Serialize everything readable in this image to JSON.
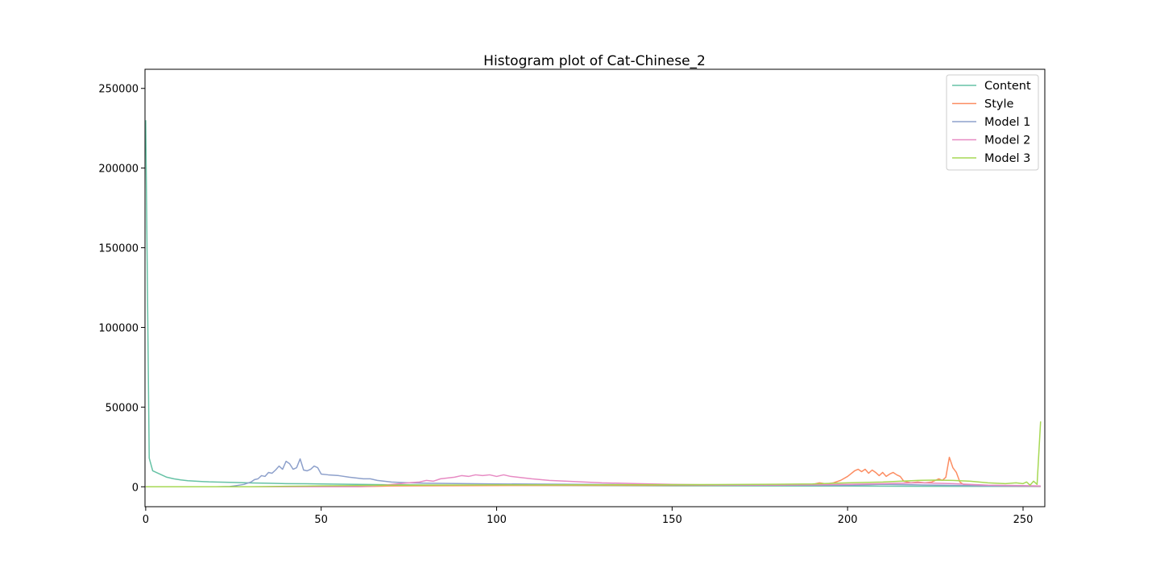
{
  "chart_data": {
    "type": "line",
    "title": "Histogram plot of Cat-Chinese_2",
    "xlabel": "",
    "ylabel": "",
    "xlim": [
      0,
      255
    ],
    "ylim": [
      -12500,
      262000
    ],
    "xticks": [
      0,
      50,
      100,
      150,
      200,
      250
    ],
    "yticks": [
      0,
      50000,
      100000,
      150000,
      200000,
      250000
    ],
    "legend_position": "top-right",
    "grid": false,
    "series": [
      {
        "name": "Content",
        "color": "#66c2a5",
        "points": [
          [
            0,
            230000
          ],
          [
            1,
            18000
          ],
          [
            2,
            10000
          ],
          [
            4,
            8000
          ],
          [
            6,
            6000
          ],
          [
            8,
            5000
          ],
          [
            10,
            4300
          ],
          [
            12,
            3800
          ],
          [
            15,
            3400
          ],
          [
            18,
            3100
          ],
          [
            20,
            3000
          ],
          [
            25,
            2700
          ],
          [
            30,
            2400
          ],
          [
            35,
            2200
          ],
          [
            40,
            2000
          ],
          [
            50,
            1800
          ],
          [
            60,
            1500
          ],
          [
            70,
            1300
          ],
          [
            80,
            1100
          ],
          [
            100,
            900
          ],
          [
            120,
            750
          ],
          [
            150,
            600
          ],
          [
            180,
            500
          ],
          [
            200,
            450
          ],
          [
            220,
            350
          ],
          [
            240,
            250
          ],
          [
            255,
            200
          ]
        ]
      },
      {
        "name": "Style",
        "color": "#fc8d62",
        "points": [
          [
            0,
            0
          ],
          [
            60,
            0
          ],
          [
            70,
            500
          ],
          [
            100,
            800
          ],
          [
            150,
            900
          ],
          [
            185,
            1000
          ],
          [
            190,
            1500
          ],
          [
            192,
            2500
          ],
          [
            194,
            1800
          ],
          [
            196,
            2500
          ],
          [
            198,
            4000
          ],
          [
            200,
            6500
          ],
          [
            202,
            10000
          ],
          [
            203,
            11000
          ],
          [
            204,
            9500
          ],
          [
            205,
            11000
          ],
          [
            206,
            8500
          ],
          [
            207,
            10500
          ],
          [
            208,
            9000
          ],
          [
            209,
            7000
          ],
          [
            210,
            9000
          ],
          [
            211,
            6500
          ],
          [
            212,
            8000
          ],
          [
            213,
            9000
          ],
          [
            214,
            7500
          ],
          [
            215,
            6500
          ],
          [
            216,
            3500
          ],
          [
            217,
            3000
          ],
          [
            218,
            2500
          ],
          [
            220,
            3000
          ],
          [
            222,
            2500
          ],
          [
            224,
            3000
          ],
          [
            226,
            5000
          ],
          [
            227,
            4000
          ],
          [
            228,
            6000
          ],
          [
            229,
            18500
          ],
          [
            230,
            12000
          ],
          [
            231,
            9000
          ],
          [
            232,
            3000
          ],
          [
            233,
            1500
          ],
          [
            235,
            800
          ],
          [
            240,
            500
          ],
          [
            250,
            300
          ],
          [
            255,
            200
          ]
        ]
      },
      {
        "name": "Model 1",
        "color": "#8da0cb",
        "points": [
          [
            0,
            0
          ],
          [
            20,
            0
          ],
          [
            24,
            200
          ],
          [
            26,
            800
          ],
          [
            28,
            1500
          ],
          [
            30,
            3000
          ],
          [
            31,
            4500
          ],
          [
            32,
            5000
          ],
          [
            33,
            7000
          ],
          [
            34,
            6500
          ],
          [
            35,
            9000
          ],
          [
            36,
            8500
          ],
          [
            37,
            10500
          ],
          [
            38,
            13000
          ],
          [
            39,
            11000
          ],
          [
            40,
            16000
          ],
          [
            41,
            14500
          ],
          [
            42,
            11000
          ],
          [
            43,
            12000
          ],
          [
            44,
            17500
          ],
          [
            45,
            10500
          ],
          [
            46,
            10000
          ],
          [
            47,
            11000
          ],
          [
            48,
            13000
          ],
          [
            49,
            12000
          ],
          [
            50,
            8000
          ],
          [
            52,
            7500
          ],
          [
            55,
            7000
          ],
          [
            58,
            6000
          ],
          [
            60,
            5500
          ],
          [
            62,
            5000
          ],
          [
            64,
            5000
          ],
          [
            66,
            4000
          ],
          [
            68,
            3500
          ],
          [
            70,
            3000
          ],
          [
            75,
            2500
          ],
          [
            80,
            2200
          ],
          [
            100,
            1800
          ],
          [
            150,
            1200
          ],
          [
            200,
            900
          ],
          [
            210,
            1500
          ],
          [
            220,
            1200
          ],
          [
            230,
            900
          ],
          [
            240,
            500
          ],
          [
            255,
            300
          ]
        ]
      },
      {
        "name": "Model 2",
        "color": "#e78ac3",
        "points": [
          [
            0,
            0
          ],
          [
            60,
            0
          ],
          [
            65,
            500
          ],
          [
            70,
            1500
          ],
          [
            75,
            2500
          ],
          [
            78,
            3000
          ],
          [
            80,
            4000
          ],
          [
            82,
            3500
          ],
          [
            84,
            5000
          ],
          [
            86,
            5500
          ],
          [
            88,
            6000
          ],
          [
            90,
            7000
          ],
          [
            92,
            6500
          ],
          [
            94,
            7500
          ],
          [
            96,
            7000
          ],
          [
            98,
            7500
          ],
          [
            100,
            6500
          ],
          [
            102,
            7500
          ],
          [
            104,
            6500
          ],
          [
            106,
            6000
          ],
          [
            108,
            5500
          ],
          [
            110,
            5000
          ],
          [
            115,
            4000
          ],
          [
            120,
            3500
          ],
          [
            125,
            3000
          ],
          [
            130,
            2500
          ],
          [
            140,
            2000
          ],
          [
            150,
            1500
          ],
          [
            160,
            1200
          ],
          [
            180,
            1000
          ],
          [
            200,
            1500
          ],
          [
            210,
            2000
          ],
          [
            220,
            2500
          ],
          [
            230,
            2000
          ],
          [
            240,
            1000
          ],
          [
            250,
            800
          ],
          [
            255,
            500
          ]
        ]
      },
      {
        "name": "Model 3",
        "color": "#a6d854",
        "points": [
          [
            0,
            0
          ],
          [
            30,
            0
          ],
          [
            40,
            300
          ],
          [
            50,
            600
          ],
          [
            60,
            800
          ],
          [
            70,
            1000
          ],
          [
            80,
            1100
          ],
          [
            100,
            1200
          ],
          [
            120,
            1200
          ],
          [
            140,
            1300
          ],
          [
            160,
            1400
          ],
          [
            180,
            1600
          ],
          [
            190,
            1800
          ],
          [
            200,
            2500
          ],
          [
            210,
            3000
          ],
          [
            220,
            4000
          ],
          [
            225,
            4200
          ],
          [
            230,
            4000
          ],
          [
            235,
            3500
          ],
          [
            240,
            2500
          ],
          [
            245,
            2000
          ],
          [
            248,
            2500
          ],
          [
            250,
            2000
          ],
          [
            251,
            3000
          ],
          [
            252,
            1000
          ],
          [
            253,
            3500
          ],
          [
            254,
            1500
          ],
          [
            255,
            41000
          ]
        ]
      }
    ]
  }
}
